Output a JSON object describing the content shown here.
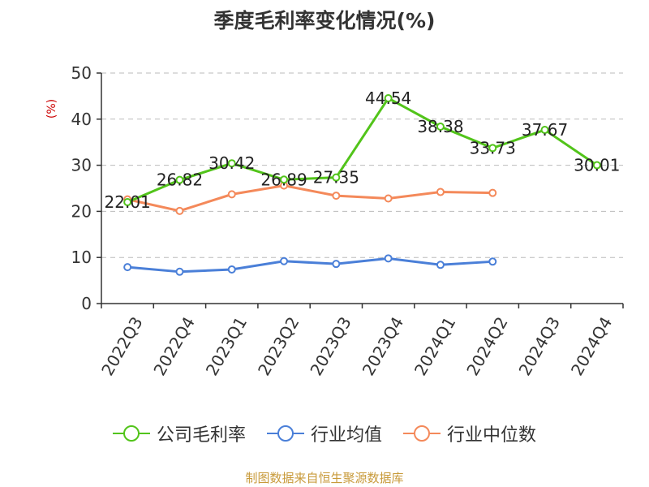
{
  "chart_data": {
    "type": "line",
    "title": "季度毛利率变化情况(%)",
    "ylabel": "(%)",
    "xlabel": "",
    "ylim": [
      0,
      50
    ],
    "yticks": [
      0,
      10,
      20,
      30,
      40,
      50
    ],
    "grid": true,
    "legend": "bottom",
    "categories": [
      "2022Q3",
      "2022Q4",
      "2023Q1",
      "2023Q2",
      "2023Q3",
      "2023Q4",
      "2024Q1",
      "2024Q2",
      "2024Q3",
      "2024Q4"
    ],
    "series": [
      {
        "name": "公司毛利率",
        "color": "#52c41a",
        "show_labels": true,
        "values": [
          22.01,
          26.82,
          30.42,
          26.89,
          27.35,
          44.54,
          38.38,
          33.73,
          37.67,
          30.01
        ]
      },
      {
        "name": "行业均值",
        "color": "#4a7fd8",
        "show_labels": false,
        "values": [
          7.9,
          6.9,
          7.4,
          9.2,
          8.6,
          9.8,
          8.4,
          9.1,
          null,
          null
        ]
      },
      {
        "name": "行业中位数",
        "color": "#f4895a",
        "show_labels": false,
        "values": [
          22.6,
          20.1,
          23.7,
          25.6,
          23.4,
          22.8,
          24.2,
          24.0,
          null,
          null
        ]
      }
    ]
  },
  "source_text": "制图数据来自恒生聚源数据库"
}
